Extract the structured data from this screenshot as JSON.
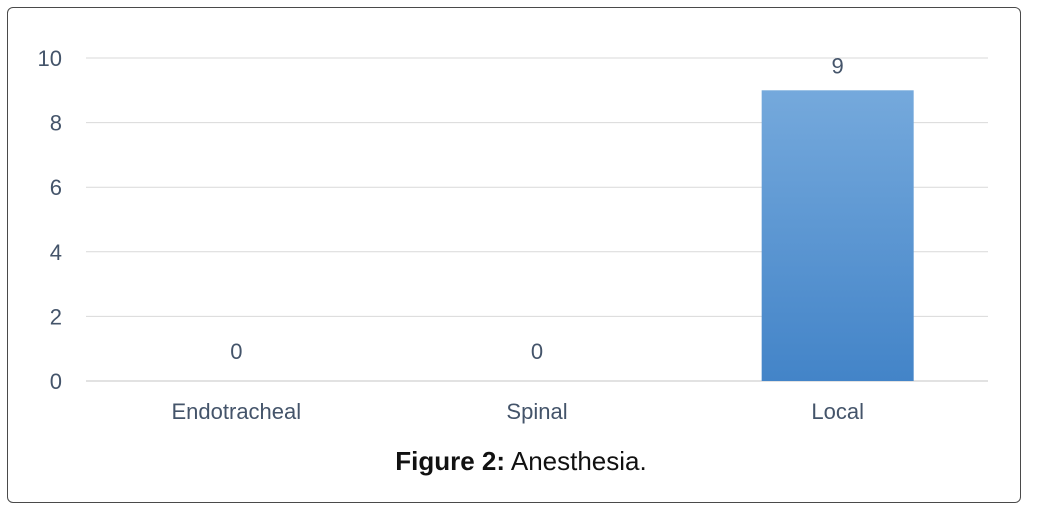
{
  "chart_data": {
    "type": "bar",
    "categories": [
      "Endotracheal",
      "Spinal",
      "Local"
    ],
    "values": [
      0,
      0,
      9
    ],
    "data_labels": [
      "0",
      "0",
      "9"
    ],
    "yticks": [
      "0",
      "2",
      "4",
      "6",
      "8",
      "10"
    ],
    "ylim": [
      0,
      10
    ],
    "grid": true,
    "bar_color_top": "#75a9dc",
    "bar_color_bottom": "#4384c8",
    "grid_color": "#d9d9d9",
    "text_color": "#44546a"
  },
  "caption": {
    "label": "Figure 2:",
    "text": " Anesthesia."
  }
}
